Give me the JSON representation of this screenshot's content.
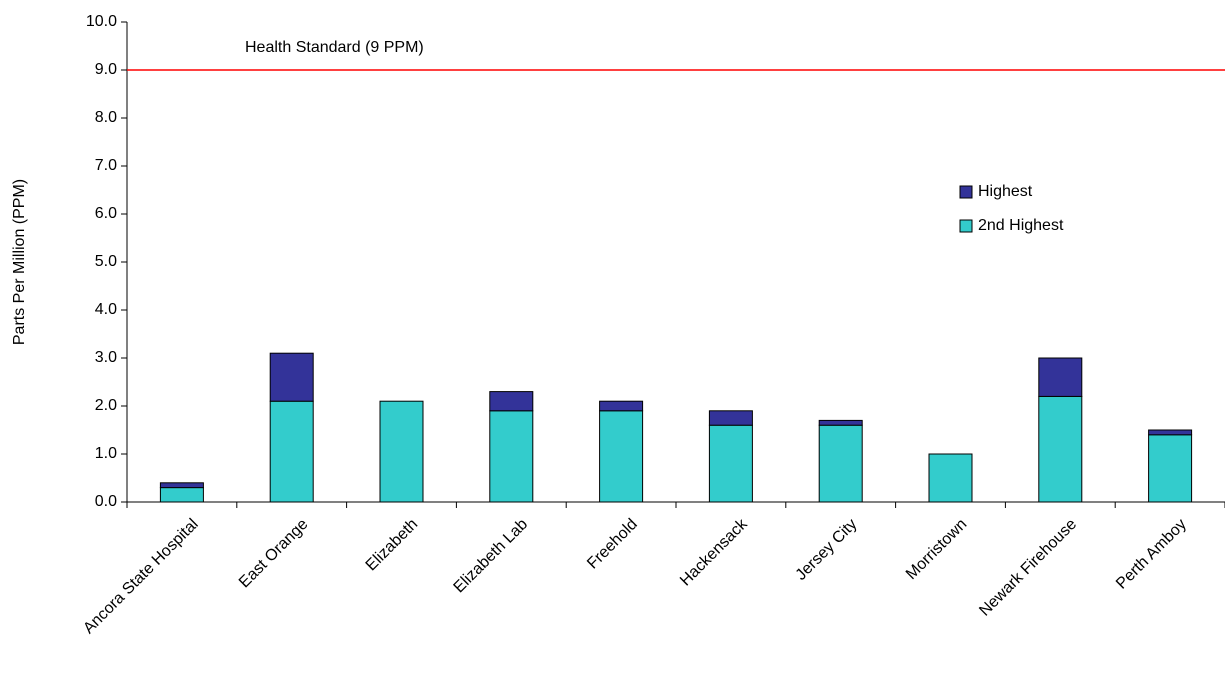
{
  "chart_data": {
    "type": "stacked_bar",
    "y_label": "Parts Per Million (PPM)",
    "categories": [
      "Ancora State Hospital",
      "East Orange",
      "Elizabeth",
      "Elizabeth Lab",
      "Freehold",
      "Hackensack",
      "Jersey City",
      "Morristown",
      "Newark Firehouse",
      "Perth Amboy"
    ],
    "series": [
      {
        "name": "2nd Highest",
        "color": "#33cccc",
        "values": [
          0.3,
          2.1,
          2.1,
          1.9,
          1.9,
          1.6,
          1.6,
          1.0,
          2.2,
          1.4
        ]
      },
      {
        "name": "Highest",
        "color": "#333399",
        "values": [
          0.1,
          1.0,
          0,
          0.4,
          0.2,
          0.3,
          0.1,
          0,
          0.8,
          0.1
        ]
      }
    ],
    "ylim": [
      0,
      10
    ],
    "yticks": [
      {
        "value": 0,
        "label": "0.0"
      },
      {
        "value": 1,
        "label": "1.0"
      },
      {
        "value": 2,
        "label": "2.0"
      },
      {
        "value": 3,
        "label": "3.0"
      },
      {
        "value": 4,
        "label": "4.0"
      },
      {
        "value": 5,
        "label": "5.0"
      },
      {
        "value": 6,
        "label": "6.0"
      },
      {
        "value": 7,
        "label": "7.0"
      },
      {
        "value": 8,
        "label": "8.0"
      },
      {
        "value": 9,
        "label": "9.0"
      },
      {
        "value": 10,
        "label": "10.0"
      }
    ],
    "reference_line": {
      "value": 9,
      "label": "Health Standard (9 PPM)",
      "color": "#ff0000"
    },
    "grid": false
  }
}
